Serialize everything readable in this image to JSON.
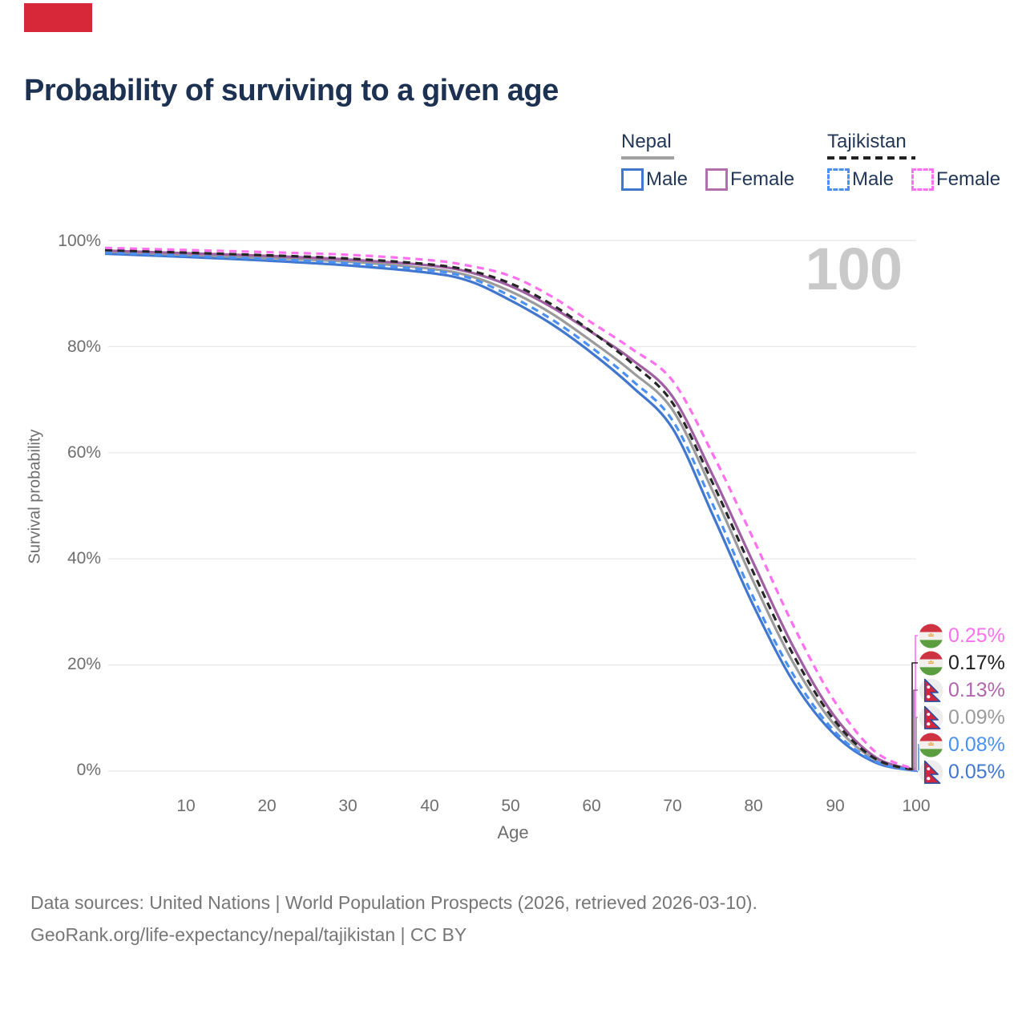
{
  "brand_block": {
    "color": "#d62839"
  },
  "title": "Probability of surviving to a given age",
  "watermark": "100",
  "legend": {
    "groups": [
      {
        "name": "Nepal",
        "underline_color": "#a0a0a0",
        "underline_style": "solid",
        "items": [
          {
            "label": "Male",
            "color": "#4277cf",
            "style": "solid"
          },
          {
            "label": "Female",
            "color": "#b070ab",
            "style": "solid"
          }
        ]
      },
      {
        "name": "Tajikistan",
        "underline_color": "#222222",
        "underline_style": "dashed",
        "items": [
          {
            "label": "Male",
            "color": "#4a90f5",
            "style": "dashed"
          },
          {
            "label": "Female",
            "color": "#ff70ee",
            "style": "dashed"
          }
        ]
      }
    ]
  },
  "y_axis": {
    "title": "Survival probability",
    "labels": [
      "100%",
      "80%",
      "60%",
      "40%",
      "20%",
      "0%"
    ],
    "values": [
      100,
      80,
      60,
      40,
      20,
      0
    ]
  },
  "x_axis": {
    "title": "Age",
    "labels": [
      "10",
      "20",
      "30",
      "40",
      "50",
      "60",
      "70",
      "80",
      "90",
      "100"
    ],
    "values": [
      10,
      20,
      30,
      40,
      50,
      60,
      70,
      80,
      90,
      100
    ]
  },
  "chart_data": {
    "type": "line",
    "title": "Probability of surviving to a given age",
    "xlabel": "Age",
    "ylabel": "Survival probability",
    "xlim": [
      0,
      100
    ],
    "ylim": [
      0,
      100
    ],
    "grid": true,
    "x_ages": [
      0,
      10,
      20,
      30,
      40,
      45,
      50,
      55,
      60,
      65,
      70,
      75,
      80,
      85,
      90,
      95,
      100
    ],
    "series": [
      {
        "name": "Nepal Male",
        "country": "Nepal",
        "sex": "Male",
        "color": "#4277cf",
        "dash": "solid",
        "end_label": "0.05%",
        "values": [
          97.5,
          96.9,
          96.2,
          95.3,
          93.9,
          92.3,
          88.7,
          84.3,
          78.8,
          72.4,
          64.5,
          48.0,
          31.0,
          16.5,
          6.8,
          1.6,
          0.05
        ]
      },
      {
        "name": "Nepal Female",
        "country": "Nepal",
        "sex": "Female",
        "color": "#a05fa3",
        "dash": "solid",
        "end_label": "0.13%",
        "values": [
          98.1,
          97.6,
          97.1,
          96.4,
          95.3,
          94.0,
          91.4,
          87.5,
          82.7,
          77.5,
          70.5,
          55.5,
          39.0,
          23.0,
          10.2,
          2.6,
          0.13
        ]
      },
      {
        "name": "Nepal",
        "country": "Nepal",
        "sex": "Both",
        "color": "#9b9b9b",
        "dash": "solid",
        "end_label": "0.09%",
        "values": [
          97.9,
          97.3,
          96.7,
          96.0,
          94.7,
          93.3,
          90.4,
          86.3,
          81.0,
          75.2,
          68.0,
          52.5,
          35.5,
          20.0,
          8.6,
          2.1,
          0.09
        ]
      },
      {
        "name": "Tajikistan Male",
        "country": "Tajikistan",
        "sex": "Male",
        "color": "#4a90f5",
        "dash": "dashed",
        "end_label": "0.08%",
        "values": [
          97.7,
          97.1,
          96.5,
          95.7,
          94.4,
          92.9,
          89.5,
          85.2,
          79.8,
          73.6,
          66.0,
          50.0,
          32.5,
          17.8,
          7.4,
          1.8,
          0.08
        ]
      },
      {
        "name": "Tajikistan Female",
        "country": "Tajikistan",
        "sex": "Female",
        "color": "#ff70ee",
        "dash": "dashed",
        "end_label": "0.25%",
        "values": [
          98.6,
          98.2,
          97.8,
          97.3,
          96.3,
          95.2,
          93.3,
          89.5,
          84.5,
          79.5,
          73.5,
          59.5,
          43.5,
          27.0,
          13.0,
          3.6,
          0.25
        ]
      },
      {
        "name": "Tajikistan",
        "country": "Tajikistan",
        "sex": "Both",
        "color": "#262626",
        "dash": "dashed",
        "end_label": "0.17%",
        "values": [
          98.2,
          97.7,
          97.2,
          96.6,
          95.5,
          94.3,
          91.9,
          88.0,
          82.8,
          76.8,
          69.3,
          54.0,
          37.2,
          21.5,
          9.4,
          2.3,
          0.17
        ]
      }
    ]
  },
  "end_labels": [
    {
      "value": "0.25%",
      "flag": "tj",
      "color": "#ff70ee",
      "series_index": 4
    },
    {
      "value": "0.17%",
      "flag": "tj",
      "color": "#1f1f1f",
      "series_index": 5
    },
    {
      "value": "0.13%",
      "flag": "np",
      "color": "#b165ae",
      "series_index": 1
    },
    {
      "value": "0.09%",
      "flag": "np",
      "color": "#9b9b9b",
      "series_index": 2
    },
    {
      "value": "0.08%",
      "flag": "tj",
      "color": "#4a90f5",
      "series_index": 3
    },
    {
      "value": "0.05%",
      "flag": "np",
      "color": "#4277cf",
      "series_index": 0
    }
  ],
  "footer": {
    "line1": "Data sources: United Nations | World Population Prospects (2026, retrieved 2026-03-10).",
    "line2": "GeoRank.org/life-expectancy/nepal/tajikistan | CC BY"
  }
}
